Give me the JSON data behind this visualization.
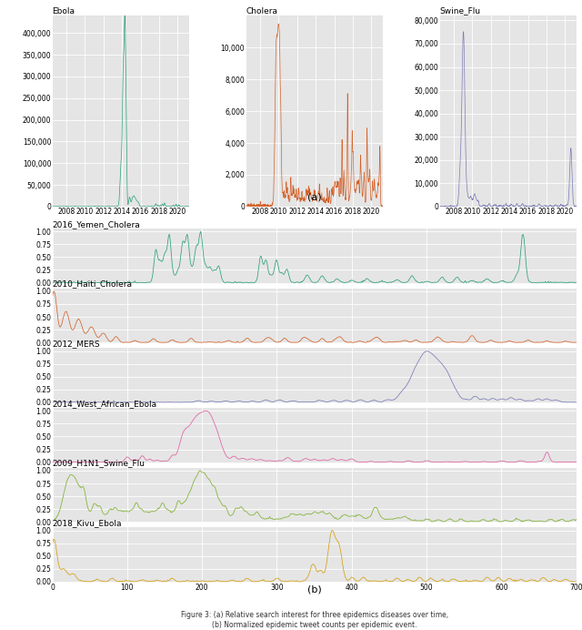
{
  "panel_a": {
    "subplots": [
      {
        "label": "Ebola",
        "color": "#2ca07a",
        "yticks": [
          0,
          50000,
          100000,
          150000,
          200000,
          250000,
          300000,
          350000,
          400000
        ],
        "ymax": 440000
      },
      {
        "label": "Cholera",
        "color": "#d4622a",
        "yticks": [
          0,
          2000,
          4000,
          6000,
          8000,
          10000
        ],
        "ymax": 12000
      },
      {
        "label": "Swine_Flu",
        "color": "#7a7ab8",
        "yticks": [
          0,
          10000,
          20000,
          30000,
          40000,
          50000,
          60000,
          70000,
          80000
        ],
        "ymax": 82000
      }
    ],
    "year_ticks": [
      2008,
      2010,
      2012,
      2014,
      2016,
      2018,
      2020
    ],
    "xmin": 2006.5,
    "xmax": 2021.2
  },
  "panel_b": {
    "subplots": [
      {
        "label": "2016_Yemen_Cholera",
        "color": "#2ba07a"
      },
      {
        "label": "2010_Haiti_Cholera",
        "color": "#d4622a"
      },
      {
        "label": "2012_MERS",
        "color": "#7a7ab8"
      },
      {
        "label": "2014_West_African_Ebola",
        "color": "#e060a0"
      },
      {
        "label": "2009_H1N1_Swine_Flu",
        "color": "#80b030"
      },
      {
        "label": "2018_Kivu_Ebola",
        "color": "#d4a010"
      }
    ],
    "yticks": [
      0.0,
      0.25,
      0.5,
      0.75,
      1.0
    ],
    "xticks": [
      0,
      100,
      200,
      300,
      400,
      500,
      600,
      700
    ],
    "xmin": 0,
    "xmax": 700
  },
  "bg_color": "#e5e5e5",
  "font_size_label": 6.5,
  "font_size_tick": 5.5,
  "font_size_caption": 5.5,
  "label_a": "(a)",
  "label_b": "(b)",
  "caption": "Figure 3: (a) Relative search interest for three epidemics diseases over time,\n(b) Normalized epidemic tweet counts per epidemic event."
}
